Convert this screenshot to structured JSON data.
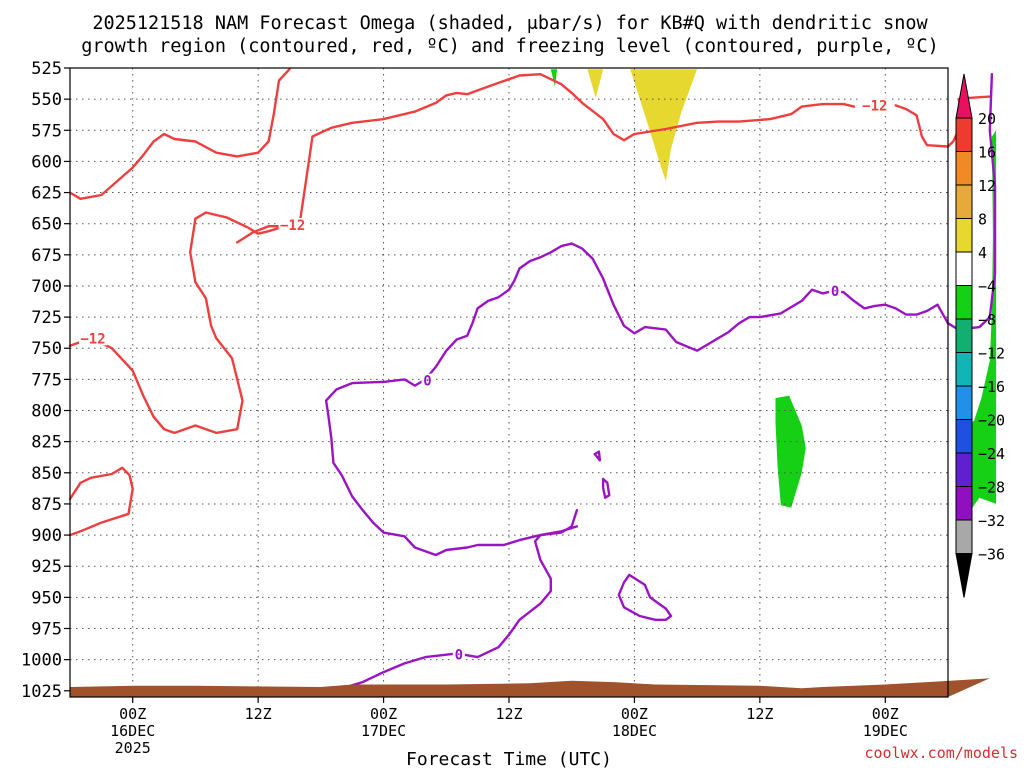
{
  "chart_data": {
    "type": "time-height contour",
    "title_line1": "2025121518 NAM Forecast Omega (shaded, μbar/s) for KB#Q with dendritic snow",
    "title_line2": "growth region (contoured, red, ºC) and freezing level (contoured, purple, ºC)",
    "xlabel": "Forecast Time (UTC)",
    "watermark": "coolwx.com/models",
    "x_ticks": [
      {
        "label": "00Z",
        "sub": "16DEC",
        "sub2": "2025",
        "hour": 6
      },
      {
        "label": "12Z",
        "sub": "",
        "sub2": "",
        "hour": 18
      },
      {
        "label": "00Z",
        "sub": "17DEC",
        "sub2": "",
        "hour": 30
      },
      {
        "label": "12Z",
        "sub": "",
        "sub2": "",
        "hour": 42
      },
      {
        "label": "00Z",
        "sub": "18DEC",
        "sub2": "",
        "hour": 54
      },
      {
        "label": "12Z",
        "sub": "",
        "sub2": "",
        "hour": 66
      },
      {
        "label": "00Z",
        "sub": "19DEC",
        "sub2": "",
        "hour": 78
      }
    ],
    "x_range_hours": [
      0,
      84
    ],
    "y_ticks_mb": [
      525,
      550,
      575,
      600,
      625,
      650,
      675,
      700,
      725,
      750,
      775,
      800,
      825,
      850,
      875,
      900,
      925,
      950,
      975,
      1000,
      1025
    ],
    "y_range_mb": [
      525,
      1030
    ],
    "grid": true,
    "colorbar": {
      "labels": [
        "20",
        "16",
        "12",
        "8",
        "4",
        "−4",
        "−8",
        "−12",
        "−16",
        "−20",
        "−24",
        "−28",
        "−32",
        "−36"
      ],
      "colors": [
        "#e8105f",
        "#ee3b30",
        "#f08a25",
        "#e6a93a",
        "#e6d82e",
        "#ffffff",
        "#15d015",
        "#12b070",
        "#12b5b5",
        "#2090e8",
        "#2050e0",
        "#6020d0",
        "#9010c0",
        "#a8a8a8",
        "#000000"
      ]
    },
    "contour_labels": {
      "dgz": "−12",
      "freezing": "0"
    },
    "series": [
      {
        "color": "#ee3f3f",
        "points": [
          [
            0,
            625
          ],
          [
            1,
            630
          ],
          [
            3,
            627
          ],
          [
            6,
            605
          ],
          [
            7,
            595
          ],
          [
            8,
            584
          ],
          [
            9,
            578
          ],
          [
            10,
            582
          ],
          [
            12,
            584
          ],
          [
            14,
            593
          ],
          [
            16,
            596
          ],
          [
            18,
            593
          ],
          [
            19,
            584
          ],
          [
            19.5,
            562
          ],
          [
            20,
            535
          ],
          [
            21,
            526
          ]
        ]
      },
      {
        "color": "#ee3f3f",
        "points": [
          [
            16,
            665
          ],
          [
            17.5,
            657
          ],
          [
            19,
            652
          ],
          [
            20.5,
            652
          ],
          [
            22,
            648
          ],
          [
            22.5,
            620
          ],
          [
            23.2,
            580
          ],
          [
            25,
            573
          ],
          [
            27,
            569
          ],
          [
            30,
            566
          ],
          [
            33,
            560
          ],
          [
            35,
            553
          ],
          [
            36,
            547
          ],
          [
            37,
            545
          ],
          [
            38,
            546
          ],
          [
            39,
            543
          ],
          [
            41,
            537
          ],
          [
            43,
            531
          ],
          [
            45,
            530
          ],
          [
            47,
            538
          ],
          [
            48,
            545
          ],
          [
            49,
            553
          ],
          [
            51,
            566
          ],
          [
            52,
            578
          ],
          [
            53,
            583
          ],
          [
            54,
            578
          ],
          [
            57,
            574
          ],
          [
            60,
            569
          ],
          [
            62,
            568
          ],
          [
            64,
            568
          ],
          [
            67,
            566
          ],
          [
            69,
            562
          ],
          [
            70,
            556
          ],
          [
            72,
            554
          ],
          [
            74,
            554
          ],
          [
            75,
            556
          ]
        ]
      },
      {
        "color": "#ee3f3f",
        "points": [
          [
            79,
            555
          ],
          [
            80,
            558
          ],
          [
            81,
            563
          ],
          [
            81.5,
            580
          ],
          [
            82,
            587
          ],
          [
            84,
            588
          ],
          [
            84.5,
            584
          ],
          [
            85,
            575
          ],
          [
            85.2,
            555
          ],
          [
            85,
            550
          ],
          [
            86,
            549
          ],
          [
            88,
            548
          ]
        ]
      },
      {
        "color": "#ee3f3f",
        "points": [
          [
            0,
            748
          ],
          [
            2,
            742
          ],
          [
            4,
            750
          ],
          [
            6,
            768
          ],
          [
            7,
            788
          ],
          [
            8,
            805
          ],
          [
            9,
            815
          ],
          [
            10,
            818
          ],
          [
            12,
            812
          ],
          [
            14,
            818
          ],
          [
            16,
            815
          ],
          [
            16.5,
            792
          ],
          [
            15.5,
            758
          ],
          [
            14,
            742
          ],
          [
            13.5,
            732
          ],
          [
            13,
            710
          ],
          [
            12,
            697
          ],
          [
            11.5,
            673
          ],
          [
            12,
            646
          ],
          [
            13,
            641
          ],
          [
            15,
            645
          ],
          [
            17,
            653
          ],
          [
            18,
            658
          ],
          [
            19,
            656
          ],
          [
            21,
            651
          ]
        ]
      },
      {
        "color": "#ee3f3f",
        "points": [
          [
            0,
            871
          ],
          [
            1,
            858
          ],
          [
            2,
            854
          ],
          [
            4,
            851
          ],
          [
            5,
            846
          ],
          [
            5.7,
            852
          ],
          [
            6,
            863
          ],
          [
            5.6,
            883
          ],
          [
            3,
            890
          ],
          [
            1,
            897
          ],
          [
            0,
            900
          ]
        ]
      },
      {
        "color": "#9a14c4",
        "points": [
          [
            24,
            1025
          ],
          [
            26,
            1023
          ],
          [
            28,
            1018
          ],
          [
            30,
            1010
          ],
          [
            32,
            1003
          ],
          [
            34,
            998
          ],
          [
            36,
            996
          ],
          [
            37,
            995
          ],
          [
            39,
            998
          ],
          [
            41,
            990
          ],
          [
            42,
            980
          ],
          [
            43,
            968
          ],
          [
            45,
            955
          ],
          [
            46,
            945
          ],
          [
            46,
            935
          ],
          [
            45,
            920
          ],
          [
            44.5,
            905
          ],
          [
            45,
            900
          ],
          [
            47,
            898
          ],
          [
            48,
            893
          ],
          [
            48.5,
            880
          ]
        ]
      },
      {
        "color": "#9a14c4",
        "points": [
          [
            48.5,
            893
          ],
          [
            47,
            897
          ],
          [
            45,
            900
          ],
          [
            43,
            904
          ],
          [
            41.5,
            908
          ],
          [
            39,
            908
          ],
          [
            38,
            910
          ],
          [
            36,
            912
          ],
          [
            35,
            916
          ],
          [
            33,
            910
          ],
          [
            32,
            901
          ],
          [
            30,
            898
          ],
          [
            29,
            890
          ],
          [
            28,
            880
          ],
          [
            27,
            869
          ],
          [
            26,
            852
          ],
          [
            25.2,
            842
          ],
          [
            25,
            822
          ],
          [
            24.7,
            803
          ],
          [
            24.5,
            792
          ],
          [
            25.5,
            783
          ],
          [
            27,
            778
          ],
          [
            30,
            777
          ],
          [
            32,
            775
          ],
          [
            33,
            780
          ],
          [
            34,
            775
          ],
          [
            35,
            765
          ],
          [
            36,
            752
          ],
          [
            37,
            743
          ],
          [
            38,
            740
          ],
          [
            38.5,
            730
          ],
          [
            39,
            718
          ],
          [
            40,
            712
          ],
          [
            41,
            709
          ],
          [
            42,
            703
          ],
          [
            42.5,
            696
          ],
          [
            43,
            686
          ],
          [
            44,
            680
          ],
          [
            45,
            677
          ],
          [
            46,
            673
          ],
          [
            47,
            668
          ],
          [
            48,
            666
          ],
          [
            49,
            670
          ],
          [
            50,
            678
          ],
          [
            51,
            694
          ],
          [
            52,
            715
          ],
          [
            53,
            732
          ],
          [
            54,
            738
          ],
          [
            55,
            733
          ],
          [
            57,
            735
          ],
          [
            58,
            745
          ],
          [
            60,
            752
          ],
          [
            61,
            747
          ],
          [
            62,
            742
          ],
          [
            63,
            737
          ],
          [
            64,
            730
          ],
          [
            65,
            725
          ],
          [
            66,
            725
          ],
          [
            68,
            722
          ],
          [
            69,
            717
          ],
          [
            70,
            712
          ],
          [
            71,
            703
          ],
          [
            72,
            706
          ],
          [
            73,
            704
          ],
          [
            74,
            705
          ],
          [
            75,
            712
          ],
          [
            76,
            718
          ],
          [
            77,
            716
          ],
          [
            78,
            715
          ],
          [
            79,
            718
          ],
          [
            80,
            723
          ],
          [
            81,
            723
          ],
          [
            82,
            720
          ],
          [
            83,
            715
          ],
          [
            84,
            730
          ],
          [
            85,
            735
          ],
          [
            87,
            733
          ],
          [
            88,
            725
          ],
          [
            88.5,
            690
          ],
          [
            88.5,
            620
          ],
          [
            88,
            575
          ],
          [
            88.2,
            530
          ]
        ]
      },
      {
        "color": "#9a14c4",
        "points": [
          [
            52.5,
            948
          ],
          [
            53,
            958
          ],
          [
            54.5,
            965
          ],
          [
            56,
            968
          ],
          [
            57,
            968
          ],
          [
            57.5,
            965
          ],
          [
            57,
            959
          ],
          [
            55.5,
            950
          ],
          [
            55,
            940
          ],
          [
            53.5,
            932
          ],
          [
            53,
            938
          ],
          [
            52.5,
            948
          ]
        ]
      },
      {
        "color": "#9a14c4",
        "points": [
          [
            51,
            862
          ],
          [
            51.2,
            870
          ],
          [
            51.6,
            868
          ],
          [
            51.4,
            858
          ],
          [
            51,
            855
          ],
          [
            51,
            862
          ]
        ]
      },
      {
        "color": "#9a14c4",
        "points": [
          [
            50.2,
            835
          ],
          [
            50.7,
            840
          ],
          [
            50.6,
            833
          ],
          [
            50.2,
            835
          ]
        ]
      }
    ],
    "shaded": [
      {
        "color": "#e6d82e",
        "points": [
          [
            53.6,
            526
          ],
          [
            55.2,
            568
          ],
          [
            56.3,
            598
          ],
          [
            57,
            616
          ],
          [
            57.5,
            590
          ],
          [
            58.5,
            560
          ],
          [
            60,
            526
          ]
        ]
      },
      {
        "color": "#e6d82e",
        "points": [
          [
            49.5,
            526
          ],
          [
            50.3,
            549
          ],
          [
            51,
            526
          ]
        ]
      },
      {
        "color": "#15d015",
        "points": [
          [
            46,
            526
          ],
          [
            46.4,
            540
          ],
          [
            46.6,
            526
          ]
        ]
      },
      {
        "color": "#15d015",
        "points": [
          [
            67.5,
            790
          ],
          [
            68.8,
            788
          ],
          [
            70,
            812
          ],
          [
            70.4,
            830
          ],
          [
            70,
            850
          ],
          [
            69,
            878
          ],
          [
            68,
            876
          ],
          [
            67.7,
            845
          ],
          [
            67.5,
            810
          ]
        ]
      },
      {
        "color": "#15d015",
        "points": [
          [
            85.5,
            815
          ],
          [
            86.5,
            808
          ],
          [
            87.2,
            790
          ],
          [
            88,
            760
          ],
          [
            88.2,
            720
          ],
          [
            88.3,
            660
          ],
          [
            88.2,
            580
          ],
          [
            88.6,
            575
          ],
          [
            88.6,
            875
          ],
          [
            87,
            870
          ],
          [
            85.5,
            888
          ]
        ]
      }
    ],
    "terrain": {
      "color": "#a0522d",
      "top_mb": [
        [
          0,
          1022
        ],
        [
          6,
          1021
        ],
        [
          12,
          1021
        ],
        [
          24,
          1022
        ],
        [
          27,
          1020
        ],
        [
          30,
          1020
        ],
        [
          36,
          1020
        ],
        [
          44,
          1019
        ],
        [
          48,
          1017
        ],
        [
          52,
          1018
        ],
        [
          56,
          1020
        ],
        [
          66,
          1021
        ],
        [
          70,
          1023
        ],
        [
          72,
          1022
        ],
        [
          78,
          1020
        ],
        [
          82,
          1018
        ],
        [
          86,
          1016
        ],
        [
          88,
          1015
        ]
      ]
    }
  }
}
